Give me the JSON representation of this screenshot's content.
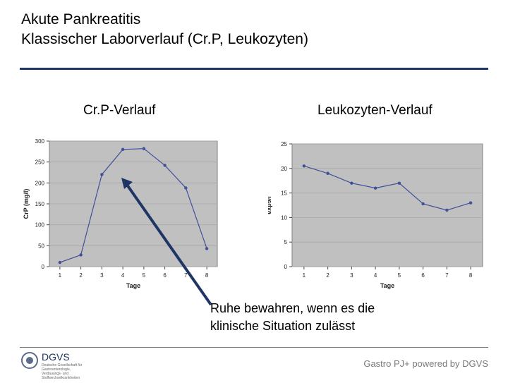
{
  "slide": {
    "title_line1": "Akute Pankreatitis",
    "title_line2": "Klassischer Laborverlauf (Cr.P, Leukozyten)",
    "left_heading": "Cr.P-Verlauf",
    "right_heading": "Leukozyten-Verlauf",
    "note_line1": "Ruhe bewahren, wenn es die",
    "note_line2": "klinische Situation zulässt",
    "footer": "Gastro PJ+ powered by DGVS",
    "logo_name": "DGVS",
    "logo_subtext": [
      "Deutsche Gesellschaft für",
      "Gastroenterologie,",
      "Verdauungs- und",
      "Stoffwechselkrankheiten"
    ],
    "accent_color": "#1f3566",
    "arrow_color": "#1f3566"
  },
  "chart_data": [
    {
      "type": "line",
      "x": [
        1,
        2,
        3,
        4,
        5,
        6,
        7,
        8
      ],
      "values": [
        10,
        28,
        220,
        280,
        282,
        242,
        188,
        43
      ],
      "xlabel": "Tage",
      "ylabel": "CrP (mg/l)",
      "ylim": [
        0,
        300
      ],
      "yticks": [
        0,
        50,
        100,
        150,
        200,
        250,
        300
      ],
      "grid": true,
      "plot_bg": "#c0c0c0",
      "line_color": "#3f4f9a"
    },
    {
      "type": "line",
      "x": [
        1,
        2,
        3,
        4,
        5,
        6,
        7,
        8
      ],
      "values": [
        20.5,
        19,
        17,
        16,
        17,
        12.8,
        11.5,
        13
      ],
      "xlabel": "Tage",
      "ylabel": "exp9/l",
      "ylim": [
        0,
        25
      ],
      "yticks": [
        0,
        5,
        10,
        15,
        20,
        25
      ],
      "grid": true,
      "plot_bg": "#c0c0c0",
      "line_color": "#3f4f9a"
    }
  ]
}
